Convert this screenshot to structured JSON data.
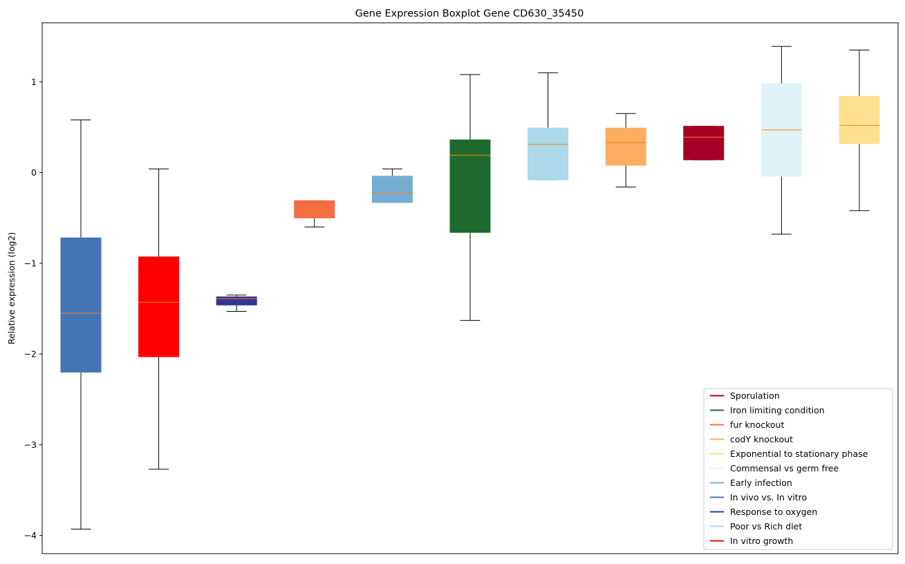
{
  "chart_data": {
    "type": "boxplot",
    "title": "Gene Expression Boxplot Gene CD630_35450",
    "xlabel": "",
    "ylabel": "Relative expression (log2)",
    "ylim": [
      -4.2,
      1.65
    ],
    "yticks": [
      -4,
      -3,
      -2,
      -1,
      0,
      1
    ],
    "ytick_labels": [
      "−4",
      "−3",
      "−2",
      "−1",
      "0",
      "1"
    ],
    "grid": false,
    "legend_position": "lower right",
    "median_color": "#ff7f0e",
    "boxes": [
      {
        "series": "In vivo vs. In vitro",
        "color": "#4575b4",
        "whisker_low": -3.93,
        "q1": -2.2,
        "median": -1.55,
        "q3": -0.72,
        "whisker_high": 0.58
      },
      {
        "series": "In vitro growth",
        "color": "#ff0000",
        "whisker_low": -3.27,
        "q1": -2.03,
        "median": -1.43,
        "q3": -0.93,
        "whisker_high": 0.04
      },
      {
        "series": "Response to oxygen",
        "color": "#313695",
        "whisker_low": -1.53,
        "q1": -1.46,
        "median": -1.39,
        "q3": -1.37,
        "whisker_high": -1.35
      },
      {
        "series": "fur knockout",
        "color": "#f46d43",
        "whisker_low": -0.6,
        "q1": -0.5,
        "median": -0.43,
        "q3": -0.31,
        "whisker_high": -0.31
      },
      {
        "series": "Early infection",
        "color": "#74add1",
        "whisker_low": -0.33,
        "q1": -0.33,
        "median": -0.22,
        "q3": -0.04,
        "whisker_high": 0.04
      },
      {
        "series": "Iron limiting condition",
        "color": "#1f6b2e",
        "whisker_low": -1.63,
        "q1": -0.66,
        "median": 0.19,
        "q3": 0.36,
        "whisker_high": 1.08
      },
      {
        "series": "Poor vs Rich diet",
        "color": "#abd9e9",
        "whisker_low": -0.08,
        "q1": -0.08,
        "median": 0.31,
        "q3": 0.49,
        "whisker_high": 1.1
      },
      {
        "series": "codY knockout",
        "color": "#fdae61",
        "whisker_low": -0.16,
        "q1": 0.08,
        "median": 0.33,
        "q3": 0.49,
        "whisker_high": 0.65
      },
      {
        "series": "Sporulation",
        "color": "#a50026",
        "whisker_low": 0.14,
        "q1": 0.14,
        "median": 0.39,
        "q3": 0.51,
        "whisker_high": 0.51
      },
      {
        "series": "Commensal vs germ free",
        "color": "#e0f3f8",
        "whisker_low": -0.68,
        "q1": -0.04,
        "median": 0.47,
        "q3": 0.98,
        "whisker_high": 1.39
      },
      {
        "series": "Exponential to stationary phase",
        "color": "#fee090",
        "whisker_low": -0.42,
        "q1": 0.32,
        "median": 0.52,
        "q3": 0.84,
        "whisker_high": 1.35
      }
    ],
    "legend": [
      {
        "label": "Sporulation",
        "color": "#a50026"
      },
      {
        "label": "Iron limiting condition",
        "color": "#1f6b2e"
      },
      {
        "label": "fur knockout",
        "color": "#f46d43"
      },
      {
        "label": "codY knockout",
        "color": "#fdae61"
      },
      {
        "label": "Exponential to stationary phase",
        "color": "#fee090"
      },
      {
        "label": "Commensal vs germ free",
        "color": "#e0f3f8"
      },
      {
        "label": "Early infection",
        "color": "#74add1"
      },
      {
        "label": "In vivo vs. In vitro",
        "color": "#4575b4"
      },
      {
        "label": "Response to oxygen",
        "color": "#313695"
      },
      {
        "label": "Poor vs Rich diet",
        "color": "#abd9e9"
      },
      {
        "label": "In vitro growth",
        "color": "#ff0000"
      }
    ]
  }
}
